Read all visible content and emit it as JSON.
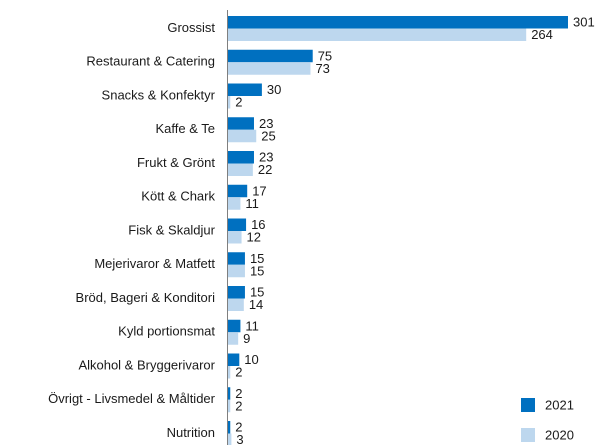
{
  "chart_data": {
    "type": "bar",
    "orientation": "horizontal",
    "categories": [
      "Grossist",
      "Restaurant & Catering",
      "Snacks & Konfektyr",
      "Kaffe & Te",
      "Frukt & Grönt",
      "Kött & Chark",
      "Fisk & Skaldjur",
      "Mejerivaror & Matfett",
      "Bröd, Bageri & Konditori",
      "Kyld portionsmat",
      "Alkohol & Bryggerivaror",
      "Övrigt - Livsmedel & Måltider",
      "Nutrition"
    ],
    "series": [
      {
        "name": "2021",
        "color": "#0070c0",
        "values": [
          301,
          75,
          30,
          23,
          23,
          17,
          16,
          15,
          15,
          11,
          10,
          2,
          2
        ]
      },
      {
        "name": "2020",
        "color": "#bdd7ee",
        "values": [
          264,
          73,
          2,
          25,
          22,
          11,
          12,
          15,
          14,
          9,
          2,
          2,
          3
        ]
      }
    ],
    "legend": "lower right"
  }
}
